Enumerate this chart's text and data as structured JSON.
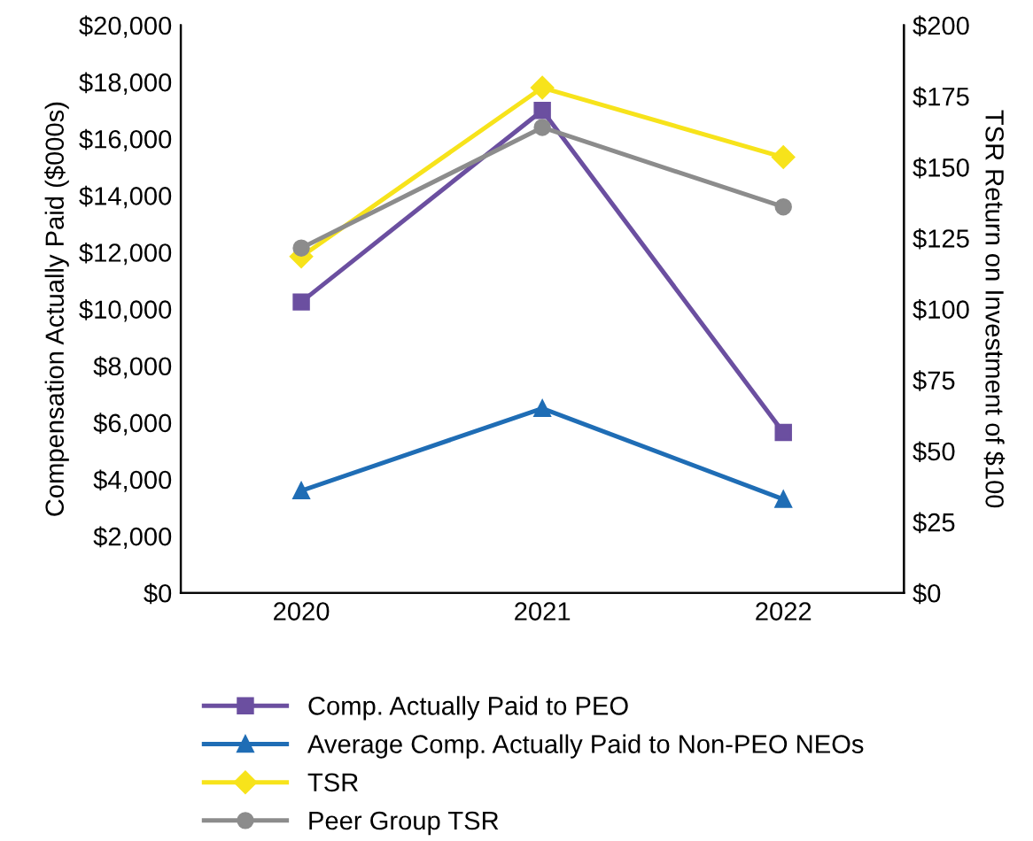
{
  "chart_data": {
    "type": "line",
    "ylabel": "Compensation Actually Paid ($000s)",
    "y2label": "TSR Return on Investment of $100",
    "categories": [
      "2020",
      "2021",
      "2022"
    ],
    "ylim": [
      0,
      20000
    ],
    "yticks": [
      {
        "value": 0,
        "label": "$0"
      },
      {
        "value": 2000,
        "label": "$2,000"
      },
      {
        "value": 4000,
        "label": "$4,000"
      },
      {
        "value": 6000,
        "label": "$6,000"
      },
      {
        "value": 8000,
        "label": "$8,000"
      },
      {
        "value": 10000,
        "label": "$10,000"
      },
      {
        "value": 12000,
        "label": "$12,000"
      },
      {
        "value": 14000,
        "label": "$14,000"
      },
      {
        "value": 16000,
        "label": "$16,000"
      },
      {
        "value": 18000,
        "label": "$18,000"
      },
      {
        "value": 20000,
        "label": "$20,000"
      }
    ],
    "y2lim": [
      0,
      200
    ],
    "y2ticks": [
      {
        "value": 0,
        "label": "$0"
      },
      {
        "value": 25,
        "label": "$25"
      },
      {
        "value": 50,
        "label": "$50"
      },
      {
        "value": 75,
        "label": "$75"
      },
      {
        "value": 100,
        "label": "$100"
      },
      {
        "value": 125,
        "label": "$125"
      },
      {
        "value": 150,
        "label": "$150"
      },
      {
        "value": 175,
        "label": "$175"
      },
      {
        "value": 200,
        "label": "$200"
      }
    ],
    "series": [
      {
        "name": "Comp. Actually Paid to PEO",
        "color": "#6b4fa0",
        "marker": "square",
        "values": [
          10250,
          17000,
          5650
        ]
      },
      {
        "name": "Average Comp. Actually Paid to Non-PEO NEOs",
        "color": "#1f6db5",
        "marker": "triangle",
        "values": [
          3600,
          6500,
          3300
        ]
      },
      {
        "name": "TSR",
        "color": "#f7e31b",
        "marker": "diamond",
        "axis": "y2",
        "values": [
          118.5,
          178,
          153.5
        ]
      },
      {
        "name": "Peer Group TSR",
        "color": "#8c8c8c",
        "marker": "circle",
        "axis": "y2",
        "values": [
          121.5,
          164,
          136
        ]
      }
    ],
    "grid": false,
    "legend": "bottom"
  }
}
